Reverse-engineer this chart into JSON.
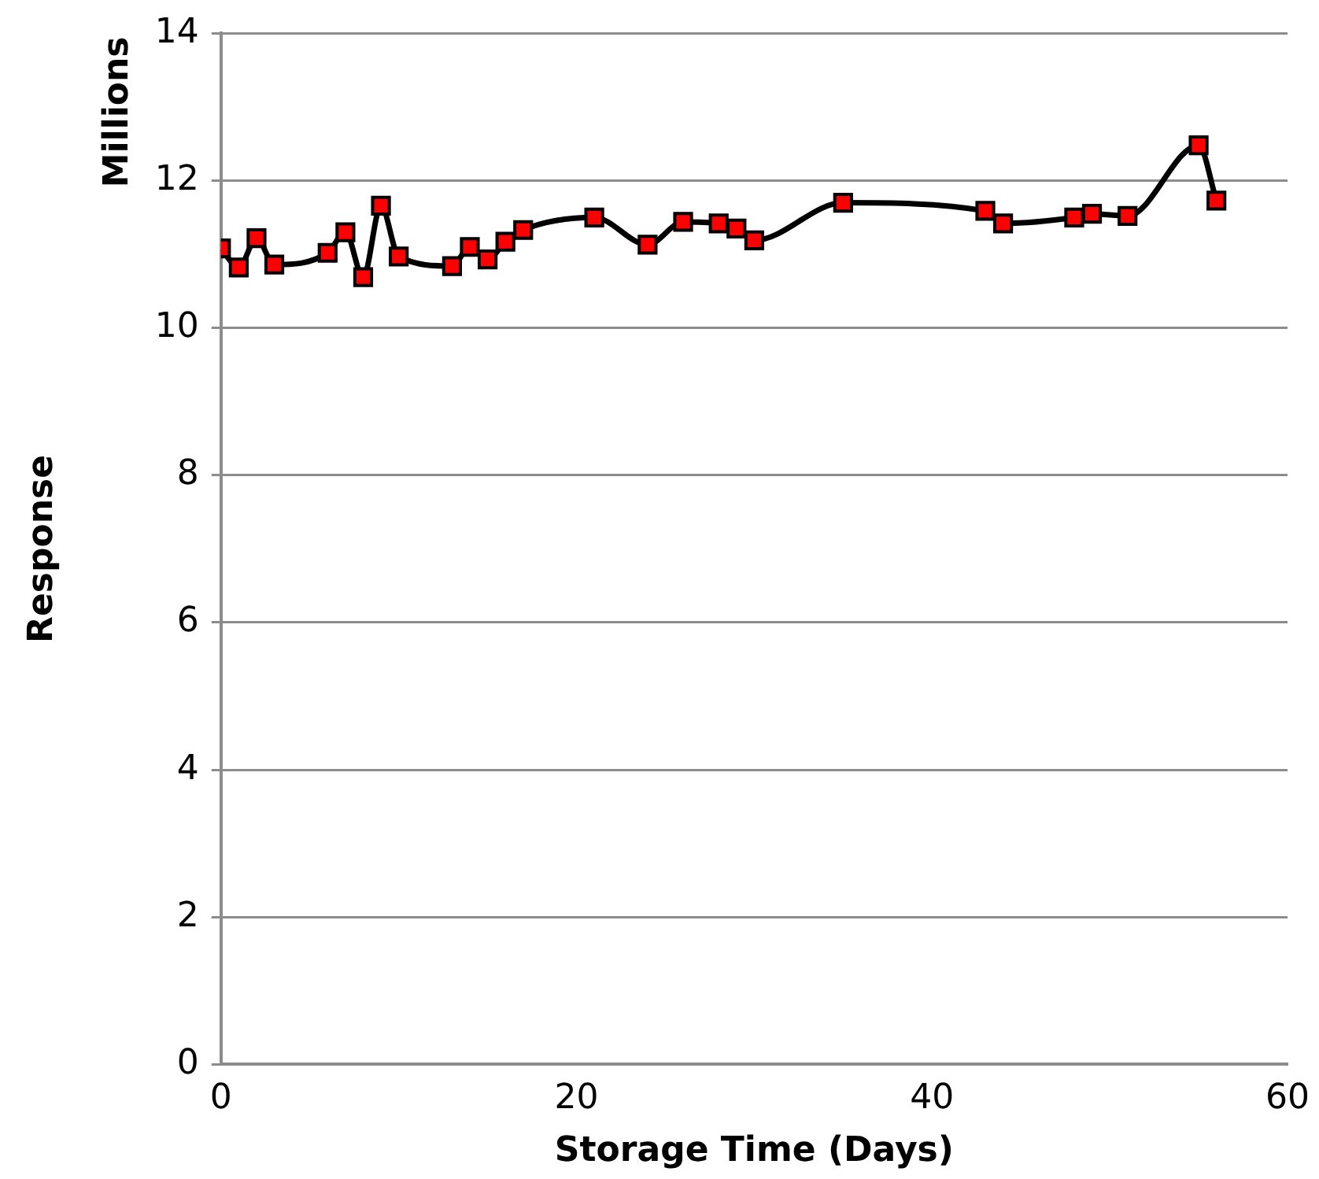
{
  "chart_data": {
    "type": "line",
    "xlabel": "Storage Time (Days)",
    "ylabel": "Response",
    "annotations": [
      "Millions"
    ],
    "xlim": [
      0,
      60
    ],
    "xticks": [
      0,
      20,
      40,
      60
    ],
    "ylim": [
      0,
      14
    ],
    "yticks": [
      0,
      2,
      4,
      6,
      8,
      10,
      12,
      14
    ],
    "grid": "y",
    "legend": false,
    "marker": "square",
    "line_style": "solid",
    "series": [
      {
        "color": "#ff0000",
        "x": [
          0,
          1,
          2,
          3,
          6,
          7,
          8,
          9,
          10,
          13,
          14,
          15,
          16,
          17,
          21,
          24,
          26,
          28,
          29,
          30,
          35,
          43,
          44,
          48,
          49,
          51,
          55,
          56
        ],
        "values": [
          11.08,
          10.82,
          11.22,
          10.86,
          11.02,
          11.3,
          10.69,
          11.66,
          10.97,
          10.84,
          11.1,
          10.93,
          11.17,
          11.33,
          11.5,
          11.13,
          11.44,
          11.42,
          11.35,
          11.19,
          11.7,
          11.59,
          11.42,
          11.5,
          11.55,
          11.52,
          12.48,
          11.73
        ]
      }
    ]
  }
}
